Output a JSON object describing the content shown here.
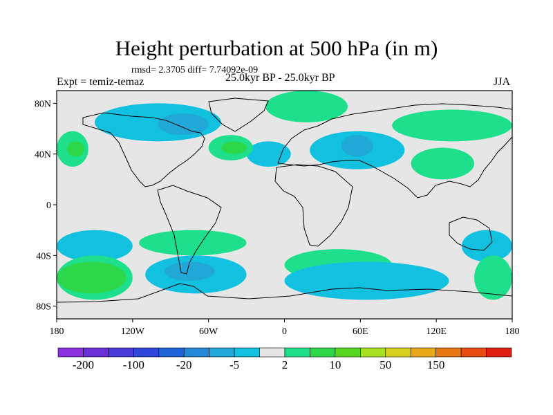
{
  "chart_data": {
    "type": "heatmap",
    "title": "Height perturbation at 500 hPa (in m)",
    "stats_text": "rmsd= 2.3705 diff= 7.74092e-09",
    "left_label": "Expt = temiz-temaz",
    "center_label": "25.0kyr BP - 25.0kyr BP",
    "right_label": "JJA",
    "x_axis": {
      "range": [
        -180,
        180
      ],
      "ticks": [
        -180,
        -120,
        -60,
        0,
        60,
        120,
        180
      ],
      "tick_labels": [
        "180",
        "120W",
        "60W",
        "0",
        "60E",
        "120E",
        "180"
      ]
    },
    "y_axis": {
      "range": [
        -90,
        90
      ],
      "ticks": [
        80,
        40,
        0,
        -40,
        -80
      ],
      "tick_labels": [
        "80N",
        "40N",
        "0",
        "40S",
        "80S"
      ]
    },
    "colorbar": {
      "colors": [
        "#8c30e0",
        "#6a30d8",
        "#4a3ad8",
        "#2f46dc",
        "#1e64d8",
        "#2288d8",
        "#20a8d8",
        "#12c0e0",
        "#e6e6e6",
        "#1ee08c",
        "#2cd84a",
        "#58d820",
        "#a8e022",
        "#d8d020",
        "#e8a818",
        "#e87812",
        "#e84a10",
        "#e01e10"
      ],
      "labels": [
        "-200",
        "-100",
        "-20",
        "-5",
        "2",
        "10",
        "50",
        "150"
      ]
    },
    "regions": [
      {
        "level": "-2 to 2",
        "color": "#e6e6e6",
        "lon": [
          -180,
          180
        ],
        "lat": [
          -90,
          90
        ]
      },
      {
        "level": "-5 to -2",
        "color": "#12c0e0",
        "lon": [
          -150,
          -50
        ],
        "lat": [
          50,
          80
        ]
      },
      {
        "level": "-20 to -5",
        "color": "#20a8d8",
        "lon": [
          -100,
          -60
        ],
        "lat": [
          55,
          72
        ]
      },
      {
        "level": "-5 to -2",
        "color": "#12c0e0",
        "lon": [
          -30,
          5
        ],
        "lat": [
          30,
          50
        ]
      },
      {
        "level": "-5 to -2",
        "color": "#12c0e0",
        "lon": [
          20,
          95
        ],
        "lat": [
          28,
          58
        ]
      },
      {
        "level": "-20 to -5",
        "color": "#20a8d8",
        "lon": [
          45,
          70
        ],
        "lat": [
          38,
          55
        ]
      },
      {
        "level": "2 to 10",
        "color": "#1ee08c",
        "lon": [
          -180,
          -155
        ],
        "lat": [
          30,
          58
        ]
      },
      {
        "level": "10 to 50",
        "color": "#2cd84a",
        "lon": [
          -172,
          -158
        ],
        "lat": [
          38,
          50
        ]
      },
      {
        "level": "2 to 10",
        "color": "#1ee08c",
        "lon": [
          -60,
          -25
        ],
        "lat": [
          35,
          55
        ]
      },
      {
        "level": "10 to 50",
        "color": "#2cd84a",
        "lon": [
          -50,
          -30
        ],
        "lat": [
          40,
          50
        ]
      },
      {
        "level": "2 to 10",
        "color": "#1ee08c",
        "lon": [
          -15,
          50
        ],
        "lat": [
          65,
          90
        ]
      },
      {
        "level": "2 to 10",
        "color": "#1ee08c",
        "lon": [
          85,
          180
        ],
        "lat": [
          50,
          75
        ]
      },
      {
        "level": "2 to 10",
        "color": "#1ee08c",
        "lon": [
          100,
          150
        ],
        "lat": [
          20,
          45
        ]
      },
      {
        "level": "-5 to -2",
        "color": "#12c0e0",
        "lon": [
          -180,
          -120
        ],
        "lat": [
          -45,
          -20
        ]
      },
      {
        "level": "2 to 10",
        "color": "#1ee08c",
        "lon": [
          -115,
          -30
        ],
        "lat": [
          -40,
          -20
        ]
      },
      {
        "level": "-5 to -2",
        "color": "#12c0e0",
        "lon": [
          -110,
          -30
        ],
        "lat": [
          -70,
          -40
        ]
      },
      {
        "level": "-20 to -5",
        "color": "#20a8d8",
        "lon": [
          -95,
          -55
        ],
        "lat": [
          -60,
          -45
        ]
      },
      {
        "level": "2 to 10",
        "color": "#1ee08c",
        "lon": [
          -180,
          -120
        ],
        "lat": [
          -75,
          -40
        ]
      },
      {
        "level": "10 to 50",
        "color": "#2cd84a",
        "lon": [
          -180,
          -125
        ],
        "lat": [
          -70,
          -45
        ]
      },
      {
        "level": "2 to 10",
        "color": "#1ee08c",
        "lon": [
          0,
          85
        ],
        "lat": [
          -60,
          -35
        ]
      },
      {
        "level": "-5 to -2",
        "color": "#12c0e0",
        "lon": [
          0,
          130
        ],
        "lat": [
          -75,
          -45
        ]
      },
      {
        "level": "-5 to -2",
        "color": "#12c0e0",
        "lon": [
          140,
          180
        ],
        "lat": [
          -45,
          -20
        ]
      },
      {
        "level": "2 to 10",
        "color": "#1ee08c",
        "lon": [
          150,
          180
        ],
        "lat": [
          -75,
          -40
        ]
      }
    ]
  }
}
